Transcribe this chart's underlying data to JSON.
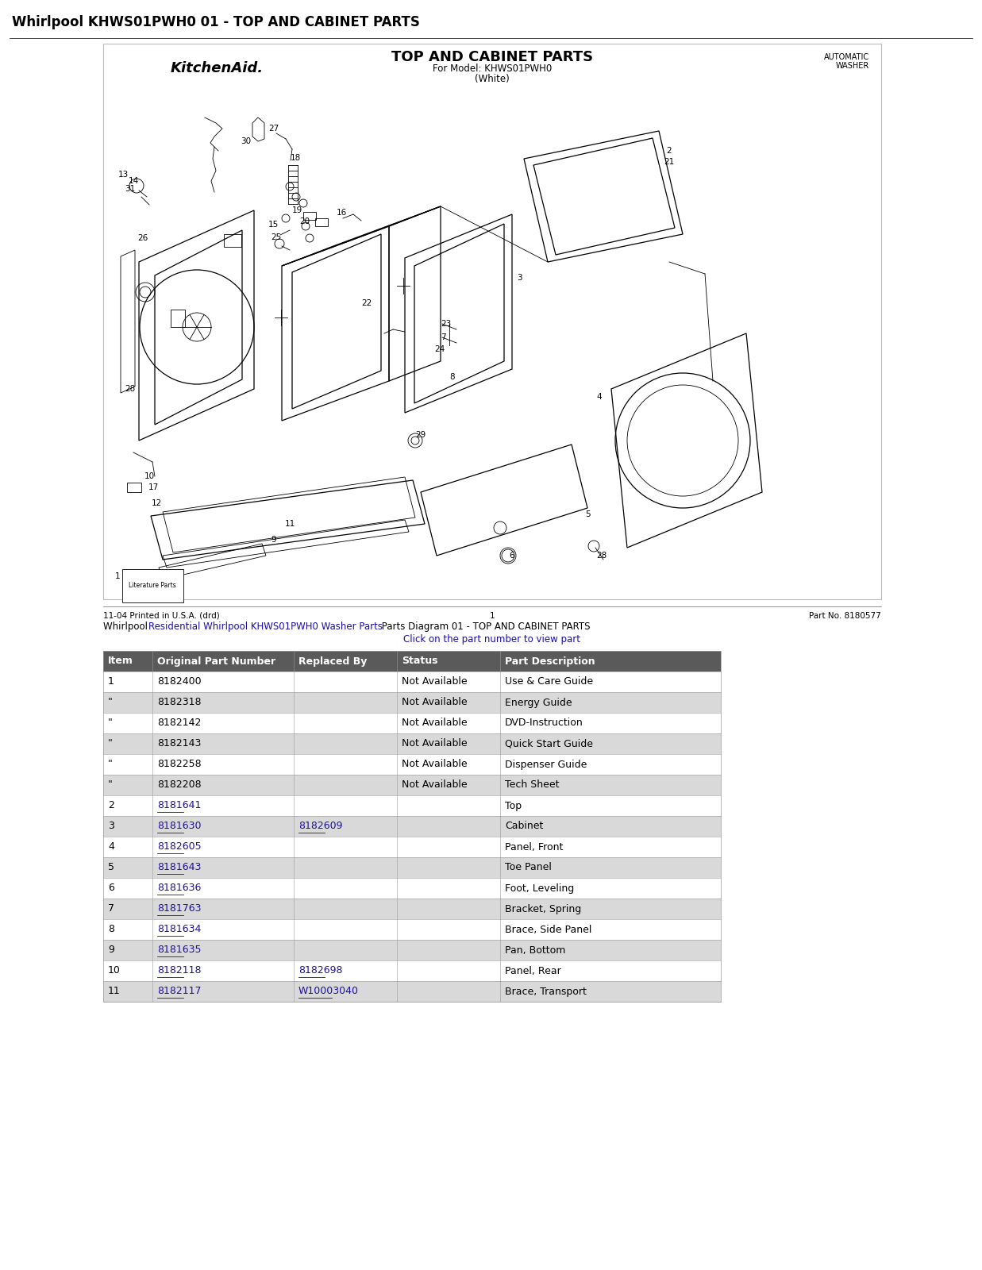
{
  "title": "Whirlpool KHWS01PWH0 01 - TOP AND CABINET PARTS",
  "title_fontsize": 12,
  "title_fontweight": "bold",
  "diagram_title": "TOP AND CABINET PARTS",
  "diagram_subtitle1": "For Model: KHWS01PWH0",
  "diagram_subtitle2": "(White)",
  "brand": "KitchenAid.",
  "top_right_line1": "AUTOMATIC",
  "top_right_line2": "WASHER",
  "footer_left": "11-04 Printed in U.S.A. (drd)",
  "footer_center": "1",
  "footer_right": "Part No. 8180577",
  "link_text_parts": [
    {
      "text": "Whirlpool ",
      "link": false
    },
    {
      "text": "Residential Whirlpool KHWS01PWH0 Washer Parts",
      "link": true
    },
    {
      "text": " Parts Diagram 01 - TOP AND CABINET PARTS",
      "link": false
    }
  ],
  "link_subtext": "Click on the part number to view part",
  "table_headers": [
    "Item",
    "Original Part Number",
    "Replaced By",
    "Status",
    "Part Description"
  ],
  "table_rows": [
    [
      "1",
      "8182400",
      "",
      "Not Available",
      "Use & Care Guide"
    ],
    [
      "\"",
      "8182318",
      "",
      "Not Available",
      "Energy Guide"
    ],
    [
      "\"",
      "8182142",
      "",
      "Not Available",
      "DVD-Instruction"
    ],
    [
      "\"",
      "8182143",
      "",
      "Not Available",
      "Quick Start Guide"
    ],
    [
      "\"",
      "8182258",
      "",
      "Not Available",
      "Dispenser Guide"
    ],
    [
      "\"",
      "8182208",
      "",
      "Not Available",
      "Tech Sheet"
    ],
    [
      "2",
      "8181641",
      "",
      "",
      "Top"
    ],
    [
      "3",
      "8181630",
      "8182609",
      "",
      "Cabinet"
    ],
    [
      "4",
      "8182605",
      "",
      "",
      "Panel, Front"
    ],
    [
      "5",
      "8181643",
      "",
      "",
      "Toe Panel"
    ],
    [
      "6",
      "8181636",
      "",
      "",
      "Foot, Leveling"
    ],
    [
      "7",
      "8181763",
      "",
      "",
      "Bracket, Spring"
    ],
    [
      "8",
      "8181634",
      "",
      "",
      "Brace, Side Panel"
    ],
    [
      "9",
      "8181635",
      "",
      "",
      "Pan, Bottom"
    ],
    [
      "10",
      "8182118",
      "8182698",
      "",
      "Panel, Rear"
    ],
    [
      "11",
      "8182117",
      "W10003040",
      "",
      "Brace, Transport"
    ]
  ],
  "linked_part_numbers": [
    "8181641",
    "8181630",
    "8182609",
    "8182605",
    "8181643",
    "8181636",
    "8181763",
    "8181634",
    "8181635",
    "8182118",
    "8182698",
    "8182117",
    "W10003040"
  ],
  "header_bg": "#5a5a5a",
  "header_fg": "#ffffff",
  "row_alt_bg": "#d9d9d9",
  "row_normal_bg": "#ffffff",
  "link_color": "#1a0dab",
  "table_fontsize": 9,
  "bg_color": "#ffffff"
}
